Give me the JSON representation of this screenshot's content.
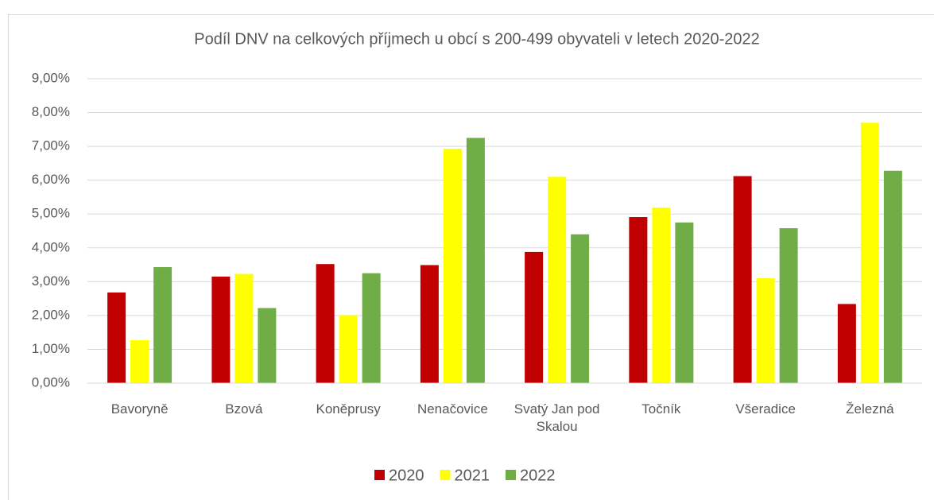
{
  "chart_data": {
    "type": "bar",
    "title": "Podíl DNV na celkových příjmech u obcí s 200-499 obyvateli v letech 2020-2022",
    "categories": [
      "Bavoryně",
      "Bzová",
      "Koněprusy",
      "Nenačovice",
      "Svatý Jan pod Skalou",
      "Točník",
      "Všeradice",
      "Železná"
    ],
    "series": [
      {
        "name": "2020",
        "color": "#c00000",
        "values": [
          2.68,
          3.15,
          3.52,
          3.49,
          3.88,
          4.91,
          6.12,
          2.34
        ]
      },
      {
        "name": "2021",
        "color": "#ffff00",
        "values": [
          1.27,
          3.23,
          2.01,
          6.93,
          6.1,
          5.19,
          3.1,
          7.7
        ]
      },
      {
        "name": "2022",
        "color": "#70ad47",
        "values": [
          3.43,
          2.22,
          3.25,
          7.25,
          4.4,
          4.75,
          4.58,
          6.28
        ]
      }
    ],
    "ylim": [
      0,
      9
    ],
    "yticks": [
      {
        "value": 0,
        "label": "0,00%"
      },
      {
        "value": 1,
        "label": "1,00%"
      },
      {
        "value": 2,
        "label": "2,00%"
      },
      {
        "value": 3,
        "label": "3,00%"
      },
      {
        "value": 4,
        "label": "4,00%"
      },
      {
        "value": 5,
        "label": "5,00%"
      },
      {
        "value": 6,
        "label": "6,00%"
      },
      {
        "value": 7,
        "label": "7,00%"
      },
      {
        "value": 8,
        "label": "8,00%"
      },
      {
        "value": 9,
        "label": "9,00%"
      }
    ],
    "grid": true,
    "legend": "bottom"
  }
}
